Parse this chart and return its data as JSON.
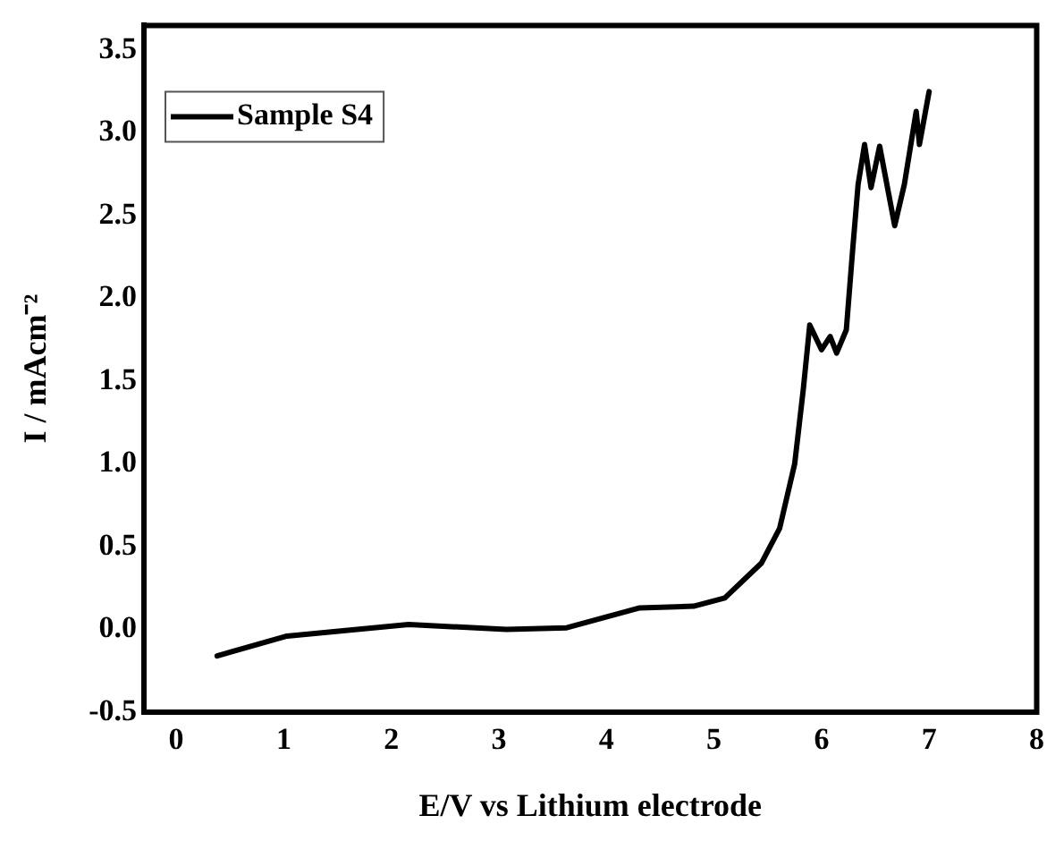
{
  "chart_data": {
    "type": "line",
    "xlabel": "E/V vs Lithium electrode",
    "ylabel": "I / mAcm⁻²",
    "series": [
      {
        "name": "Sample S4",
        "color": "#000000",
        "x": [
          0.38,
          1.03,
          2.16,
          3.07,
          3.63,
          4.31,
          4.81,
          5.1,
          5.44,
          5.61,
          5.75,
          5.83,
          5.89,
          6.0,
          6.08,
          6.14,
          6.23,
          6.29,
          6.34,
          6.4,
          6.46,
          6.54,
          6.68,
          6.77,
          6.88,
          6.91,
          7.0
        ],
        "values": [
          -0.16,
          -0.04,
          0.03,
          0.0,
          0.01,
          0.13,
          0.14,
          0.19,
          0.4,
          0.61,
          1.0,
          1.45,
          1.84,
          1.69,
          1.77,
          1.67,
          1.81,
          2.3,
          2.69,
          2.93,
          2.67,
          2.92,
          2.44,
          2.69,
          3.13,
          2.93,
          3.25
        ]
      }
    ],
    "xlim": [
      -0.3,
      8
    ],
    "xticks": [
      0,
      1,
      2,
      3,
      4,
      5,
      6,
      7,
      8
    ],
    "ylim": [
      -0.5,
      3.65
    ],
    "yticks": [
      {
        "value": -0.5,
        "label": "-0.5"
      },
      {
        "value": 0,
        "label": "0.0"
      },
      {
        "value": 0.5,
        "label": "0.5"
      },
      {
        "value": 1,
        "label": "1.0"
      },
      {
        "value": 1.5,
        "label": "1.5"
      },
      {
        "value": 2,
        "label": "2.0"
      },
      {
        "value": 2.5,
        "label": "2.5"
      },
      {
        "value": 3,
        "label": "3.0"
      },
      {
        "value": 3.5,
        "label": "3.5"
      }
    ],
    "grid": false,
    "legend": "top left",
    "marker": "none",
    "line_style": "solid"
  }
}
